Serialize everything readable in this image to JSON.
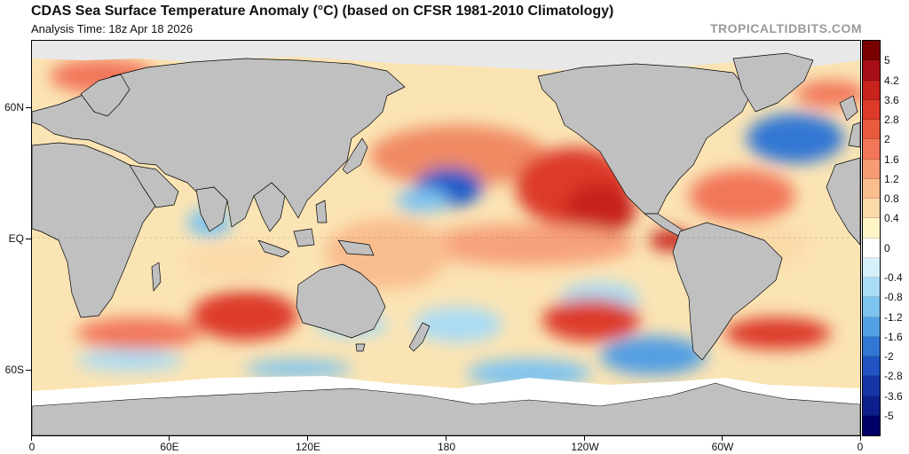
{
  "title": "CDAS Sea Surface Temperature Anomaly (°C) (based on CFSR 1981-2010 Climatology)",
  "subtitle": "Analysis Time: 18z Apr 18 2026",
  "brand": "TROPICALTIDBITS.COM",
  "map": {
    "lat_labels": [
      "60N",
      "EQ",
      "60S"
    ],
    "lon_labels": [
      "0",
      "60E",
      "120E",
      "180",
      "120W",
      "60W",
      "0"
    ]
  },
  "colorbar": {
    "labels": [
      "5",
      "4.2",
      "3.6",
      "2.8",
      "2",
      "1.6",
      "1.2",
      "0.8",
      "0.4",
      "0",
      "-0.4",
      "-0.8",
      "-1.2",
      "-1.6",
      "-2",
      "-2.8",
      "-3.6",
      "-5"
    ],
    "colors": [
      "#7a0000",
      "#a50f15",
      "#c8231c",
      "#dd3a2a",
      "#ea5a3e",
      "#f2775a",
      "#f69c74",
      "#f9bd8e",
      "#fbd9a9",
      "#fff4c6",
      "#ffffff",
      "#d6f0fb",
      "#a9dcf5",
      "#7dc3ef",
      "#529fe3",
      "#3377d4",
      "#2154c2",
      "#1636a8",
      "#0d1f8c",
      "#00006a"
    ]
  },
  "colors": {
    "land": "#c0c0c0",
    "ice": "#ffffff",
    "coast": "#000000",
    "brand": "#9a9a9a"
  }
}
